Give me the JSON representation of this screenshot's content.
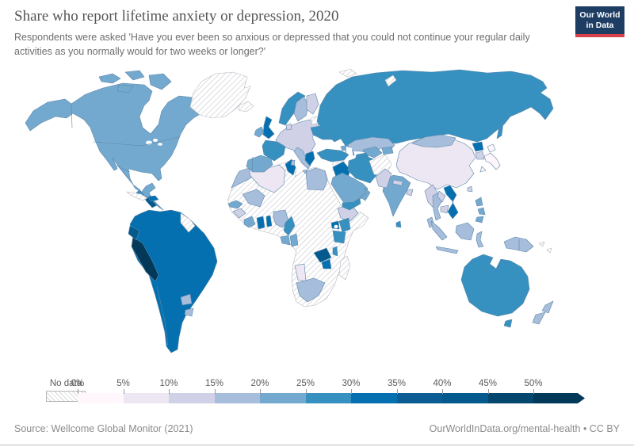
{
  "header": {
    "title": "Share who report lifetime anxiety or depression, 2020",
    "subtitle": "Respondents were asked 'Have you ever been so anxious or depressed that you could not continue your regular daily activities as you normally would for two weeks or longer?'",
    "logo": {
      "line1": "Our World",
      "line2": "in Data",
      "bg": "#1d3d63",
      "accent": "#d8414b"
    }
  },
  "legend": {
    "no_data_label": "No data",
    "tick_labels": [
      "0%",
      "5%",
      "10%",
      "15%",
      "20%",
      "25%",
      "30%",
      "35%",
      "40%",
      "45%",
      "50%"
    ],
    "colors": [
      "#fff7fb",
      "#ece7f2",
      "#d0d1e6",
      "#a6bddb",
      "#74a9cf",
      "#3690c0",
      "#0570b0",
      "#0b5d94",
      "#045a8d",
      "#03466e",
      "#023858"
    ]
  },
  "footer": {
    "source": "Source: Wellcome Global Monitor (2021)",
    "link": "OurWorldInData.org/mental-health • CC BY"
  },
  "chart_data": {
    "type": "heatmap",
    "subtype": "choropleth-world-map",
    "title": "Share who report lifetime anxiety or depression, 2020",
    "unit": "share of respondents (%)",
    "bin_labels": [
      "0-5%",
      "5-10%",
      "10-15%",
      "15-20%",
      "20-25%",
      "25-30%",
      "30-35%",
      "35-40%",
      "40-45%",
      "45-50%",
      "50%+"
    ],
    "legend_open_ended_max": true,
    "regions": {
      "canada": {
        "label": "Canada",
        "bin": 4
      },
      "united-states": {
        "label": "United States",
        "bin": 4
      },
      "mexico": {
        "label": "Mexico",
        "bin": 4
      },
      "guatemala": {
        "label": "Guatemala",
        "bin": 5
      },
      "nicaragua": {
        "label": "Nicaragua",
        "bin": 8
      },
      "cuba": {
        "label": "Cuba",
        "bin": "no-data"
      },
      "dominican-republic": {
        "label": "Dominican Republic",
        "bin": 6
      },
      "greenland": {
        "label": "Greenland",
        "bin": "no-data"
      },
      "iceland": {
        "label": "Iceland",
        "bin": "no-data"
      },
      "venezuela": {
        "label": "Venezuela",
        "bin": 6
      },
      "guyana": {
        "label": "Guyana & Suriname",
        "bin": "no-data"
      },
      "colombia": {
        "label": "Colombia",
        "bin": 6
      },
      "ecuador": {
        "label": "Ecuador",
        "bin": 8
      },
      "peru": {
        "label": "Peru",
        "bin": 10
      },
      "brazil": {
        "label": "Brazil",
        "bin": 6
      },
      "bolivia": {
        "label": "Bolivia",
        "bin": 6
      },
      "paraguay": {
        "label": "Paraguay",
        "bin": 3
      },
      "uruguay": {
        "label": "Uruguay",
        "bin": 3
      },
      "argentina": {
        "label": "Argentina",
        "bin": 6
      },
      "chile": {
        "label": "Chile",
        "bin": 6
      },
      "united-kingdom": {
        "label": "United Kingdom",
        "bin": 6
      },
      "ireland": {
        "label": "Ireland",
        "bin": 4
      },
      "france": {
        "label": "France",
        "bin": 5
      },
      "spain": {
        "label": "Spain",
        "bin": 4
      },
      "portugal": {
        "label": "Portugal",
        "bin": 4
      },
      "central-europe": {
        "label": "Central & Eastern Europe",
        "bin": 2
      },
      "italy": {
        "label": "Italy",
        "bin": 3
      },
      "greece": {
        "label": "Greece",
        "bin": 6
      },
      "norway": {
        "label": "Norway",
        "bin": 5
      },
      "sweden": {
        "label": "Sweden",
        "bin": 3
      },
      "finland": {
        "label": "Finland",
        "bin": 2
      },
      "denmark": {
        "label": "Denmark",
        "bin": 2
      },
      "baltic-states": {
        "label": "Baltic states",
        "bin": "no-data"
      },
      "ukraine": {
        "label": "Ukraine",
        "bin": 5
      },
      "russia": {
        "label": "Russia",
        "bin": 5
      },
      "svalbard": {
        "label": "Svalbard",
        "bin": "no-data"
      },
      "novaya-zemlya": {
        "label": "Novaya Zemlya",
        "bin": "no-data"
      },
      "kazakhstan": {
        "label": "Kazakhstan",
        "bin": 3
      },
      "uzbekistan": {
        "label": "Uzbekistan",
        "bin": 4
      },
      "turkmenistan": {
        "label": "Turkmenistan",
        "bin": 5
      },
      "kyrgyzstan": {
        "label": "Kyrgyzstan & Tajikistan",
        "bin": 4
      },
      "georgia": {
        "label": "Georgia",
        "bin": 4
      },
      "azerbaijan": {
        "label": "Azerbaijan",
        "bin": 6
      },
      "turkey": {
        "label": "Turkey",
        "bin": 5
      },
      "syria": {
        "label": "Syria",
        "bin": "no-data"
      },
      "iraq": {
        "label": "Iraq",
        "bin": 6
      },
      "iran": {
        "label": "Iran",
        "bin": 5
      },
      "saudi-arabia": {
        "label": "Saudi Arabia",
        "bin": 4
      },
      "yemen": {
        "label": "Yemen",
        "bin": 5
      },
      "oman": {
        "label": "Oman",
        "bin": 4
      },
      "afghanistan": {
        "label": "Afghanistan",
        "bin": "no-data"
      },
      "pakistan": {
        "label": "Pakistan",
        "bin": 2
      },
      "india": {
        "label": "India",
        "bin": 4
      },
      "nepal": {
        "label": "Nepal",
        "bin": 2
      },
      "bangladesh": {
        "label": "Bangladesh",
        "bin": 2
      },
      "sri-lanka": {
        "label": "Sri Lanka",
        "bin": 5
      },
      "myanmar": {
        "label": "Myanmar",
        "bin": 2
      },
      "thailand": {
        "label": "Thailand",
        "bin": 3
      },
      "laos": {
        "label": "Laos",
        "bin": 2
      },
      "cambodia": {
        "label": "Cambodia",
        "bin": 2
      },
      "vietnam": {
        "label": "Vietnam",
        "bin": 6
      },
      "china": {
        "label": "China",
        "bin": 1
      },
      "mongolia": {
        "label": "Mongolia",
        "bin": 3
      },
      "north-korea": {
        "label": "North Korea",
        "bin": 6
      },
      "south-korea": {
        "label": "South Korea",
        "bin": 2
      },
      "japan": {
        "label": "Japan",
        "bin": 0
      },
      "taiwan": {
        "label": "Taiwan",
        "bin": 2
      },
      "philippines": {
        "label": "Philippines",
        "bin": 4
      },
      "malaysia": {
        "label": "Malaysia",
        "bin": 3
      },
      "indonesia": {
        "label": "Indonesia",
        "bin": 3
      },
      "papua-new-guinea": {
        "label": "Papua New Guinea",
        "bin": 3
      },
      "solomon-islands": {
        "label": "Solomon Islands",
        "bin": "no-data"
      },
      "australia": {
        "label": "Australia",
        "bin": 5
      },
      "new-zealand": {
        "label": "New Zealand",
        "bin": 3
      },
      "morocco": {
        "label": "Morocco",
        "bin": 3
      },
      "algeria": {
        "label": "Algeria",
        "bin": 1
      },
      "tunisia": {
        "label": "Tunisia",
        "bin": 6
      },
      "libya": {
        "label": "Libya",
        "bin": "no-data"
      },
      "egypt": {
        "label": "Egypt",
        "bin": 3
      },
      "mauritania": {
        "label": "Mauritania & Western Sahara",
        "bin": "no-data"
      },
      "mali": {
        "label": "Mali",
        "bin": 3
      },
      "niger": {
        "label": "Niger",
        "bin": "no-data"
      },
      "chad": {
        "label": "Chad",
        "bin": "no-data"
      },
      "sudan": {
        "label": "Sudan",
        "bin": "no-data"
      },
      "senegal": {
        "label": "Senegal",
        "bin": 4
      },
      "guinea": {
        "label": "Guinea",
        "bin": 2
      },
      "ivory-coast": {
        "label": "Cote d'Ivoire",
        "bin": 4
      },
      "ghana": {
        "label": "Ghana",
        "bin": 6
      },
      "benin": {
        "label": "Benin & Togo",
        "bin": 6
      },
      "nigeria": {
        "label": "Nigeria",
        "bin": 3
      },
      "cameroon": {
        "label": "Cameroon",
        "bin": 5
      },
      "gabon": {
        "label": "Gabon",
        "bin": 4
      },
      "republic-of-congo": {
        "label": "Republic of Congo",
        "bin": 4
      },
      "dr-congo": {
        "label": "Democratic Republic of Congo",
        "bin": "no-data"
      },
      "angola": {
        "label": "Angola",
        "bin": "no-data"
      },
      "ethiopia": {
        "label": "Ethiopia",
        "bin": 2
      },
      "somalia": {
        "label": "Somalia",
        "bin": "no-data"
      },
      "uganda": {
        "label": "Uganda",
        "bin": 6
      },
      "kenya": {
        "label": "Kenya",
        "bin": 5
      },
      "tanzania": {
        "label": "Tanzania",
        "bin": 5
      },
      "malawi": {
        "label": "Malawi",
        "bin": 5
      },
      "zambia": {
        "label": "Zambia",
        "bin": 8
      },
      "zimbabwe": {
        "label": "Zimbabwe",
        "bin": 6
      },
      "mozambique": {
        "label": "Mozambique",
        "bin": "no-data"
      },
      "madagascar": {
        "label": "Madagascar",
        "bin": "no-data"
      },
      "namibia": {
        "label": "Namibia",
        "bin": 1
      },
      "botswana": {
        "label": "Botswana",
        "bin": "no-data"
      },
      "south-africa": {
        "label": "South Africa",
        "bin": 3
      }
    }
  }
}
